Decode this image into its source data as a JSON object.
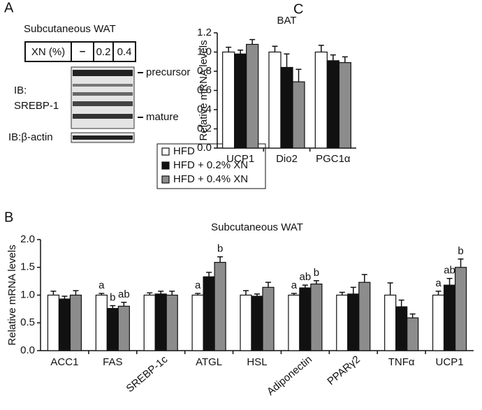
{
  "panel_a": {
    "panel": "A",
    "title": "Subcutaneous WAT",
    "xn_header": "XN (%)",
    "xn_levels": [
      "–",
      "0.2",
      "0.4"
    ],
    "ib_label": "IB:",
    "ib_target": "SREBP-1",
    "precursor": "precursor",
    "mature": "mature",
    "actin_label": "IB:β-actin"
  },
  "chart_data": [
    {
      "type": "bar",
      "panel": "C",
      "title": "BAT",
      "ylabel": "Relative mRNA levels",
      "categories": [
        "UCP1",
        "Dio2",
        "PGC1α"
      ],
      "ylim": [
        0,
        1.2
      ],
      "yticks": [
        {
          "value": 0,
          "label": "0.0"
        },
        0.2,
        0.4,
        0.6,
        0.8,
        {
          "value": 1,
          "label": "1.0"
        },
        1.2
      ],
      "series": [
        {
          "color": "#ffffff",
          "values": [
            1.0,
            1.0,
            1.0
          ],
          "errors": [
            0.05,
            0.06,
            0.07
          ]
        },
        {
          "color": "#111111",
          "values": [
            0.98,
            0.84,
            0.91
          ],
          "errors": [
            0.04,
            0.14,
            0.06
          ]
        },
        {
          "color": "#8c8c8c",
          "values": [
            1.08,
            0.69,
            0.89
          ],
          "errors": [
            0.05,
            0.13,
            0.06
          ]
        }
      ]
    },
    {
      "type": "bar",
      "panel": "B",
      "title": "Subcutaneous WAT",
      "ylabel": "Relative mRNA levels",
      "categories": [
        "ACC1",
        "FAS",
        "SREBP-1c",
        "ATGL",
        "HSL",
        "Adiponectin",
        "PPARγ2",
        "TNFα",
        "UCP1"
      ],
      "ylim": [
        0,
        2
      ],
      "yticks": [
        {
          "value": 0,
          "label": "0.0"
        },
        0.5,
        {
          "value": 1,
          "label": "1.0"
        },
        1.5,
        {
          "value": 2,
          "label": "2.0"
        }
      ],
      "series": [
        {
          "name": "HFD",
          "color": "#ffffff",
          "values": [
            1.0,
            1.0,
            1.0,
            1.0,
            1.0,
            1.0,
            1.0,
            1.0,
            1.0
          ],
          "errors": [
            0.07,
            0.03,
            0.04,
            0.03,
            0.08,
            0.03,
            0.05,
            0.22,
            0.07
          ],
          "letters": [
            null,
            "a",
            null,
            "a",
            null,
            "a",
            null,
            null,
            "a"
          ]
        },
        {
          "name": "HFD + 0.2% XN",
          "color": "#111111",
          "values": [
            0.93,
            0.76,
            1.02,
            1.33,
            0.98,
            1.13,
            1.02,
            0.79,
            1.18
          ],
          "errors": [
            0.05,
            0.05,
            0.05,
            0.08,
            0.04,
            0.05,
            0.12,
            0.12,
            0.12
          ],
          "letters": [
            null,
            "b",
            null,
            null,
            null,
            "ab",
            null,
            null,
            "ab"
          ]
        },
        {
          "name": "HFD + 0.4% XN",
          "color": "#8c8c8c",
          "values": [
            1.0,
            0.8,
            1.0,
            1.59,
            1.14,
            1.2,
            1.23,
            0.59,
            1.5
          ],
          "errors": [
            0.08,
            0.07,
            0.07,
            0.1,
            0.09,
            0.06,
            0.14,
            0.07,
            0.15
          ],
          "letters": [
            null,
            "ab",
            null,
            "b",
            null,
            "b",
            null,
            null,
            "b"
          ]
        }
      ]
    }
  ]
}
